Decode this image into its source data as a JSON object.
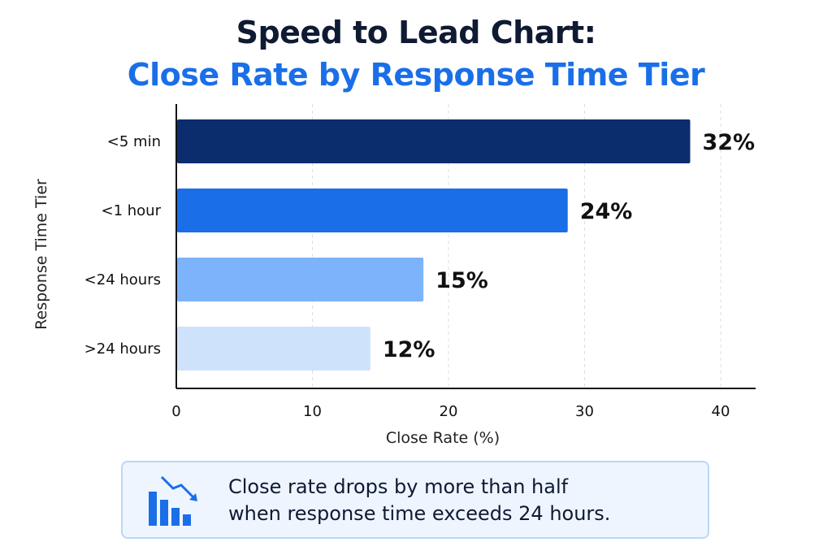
{
  "title": {
    "line1": "Speed to Lead Chart:",
    "line2": "Close Rate by Response Time Tier"
  },
  "chart_data": {
    "type": "bar",
    "orientation": "horizontal",
    "categories": [
      "<5 min",
      "<1 hour",
      "<24 hours",
      ">24 hours"
    ],
    "values": [
      32,
      24,
      15,
      12
    ],
    "bar_lengths": [
      37.7,
      28.7,
      18.1,
      14.2
    ],
    "value_labels": [
      "32%",
      "24%",
      "15%",
      "12%"
    ],
    "colors": [
      "#0b2d6e",
      "#1a6fe8",
      "#7db3fa",
      "#cfe2fc"
    ],
    "xlabel": "Close Rate (%)",
    "ylabel": "Response Time Tier",
    "xlim": [
      0,
      42
    ],
    "xticks": [
      0,
      10,
      20,
      30,
      40
    ],
    "grid": "vertical-dashed"
  },
  "callout": {
    "icon": "declining-bar-chart-icon",
    "line1": "Close rate drops by more than half",
    "line2": "when response time exceeds 24 hours."
  }
}
